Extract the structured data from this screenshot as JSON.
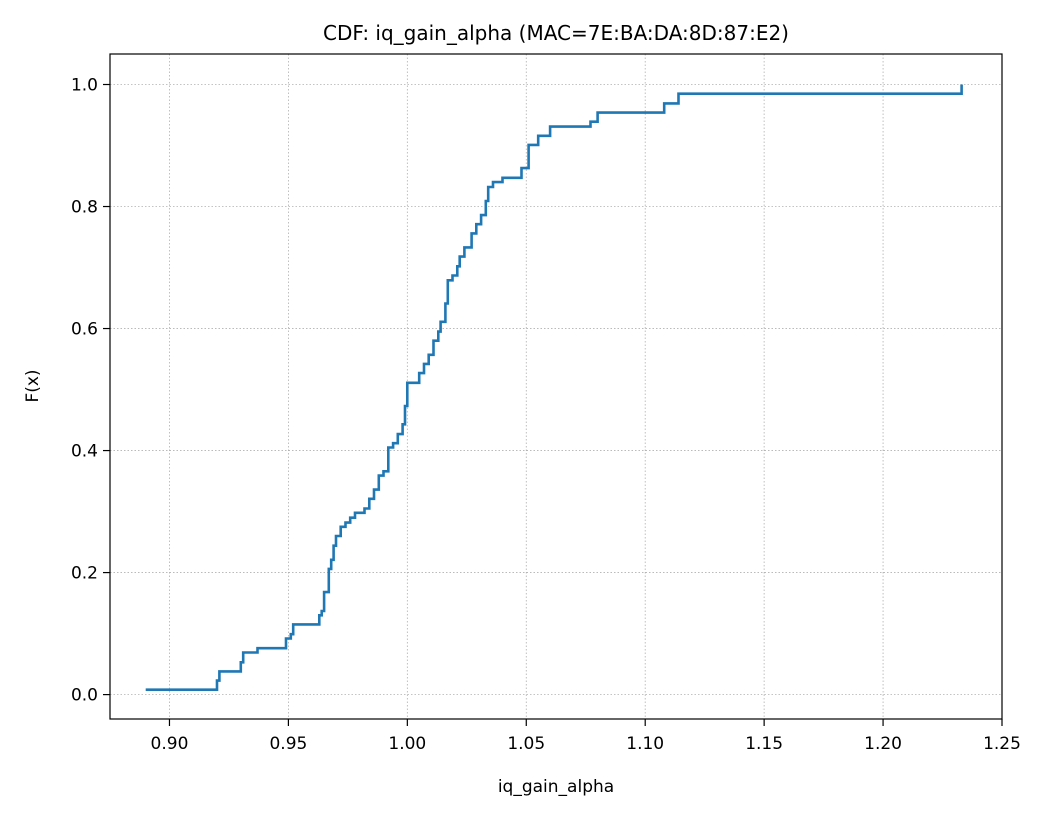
{
  "chart_data": {
    "type": "line",
    "step": true,
    "title": "CDF: iq_gain_alpha (MAC=7E:BA:DA:8D:87:E2)",
    "xlabel": "iq_gain_alpha",
    "ylabel": "F(x)",
    "xlim": [
      0.875,
      1.25
    ],
    "ylim": [
      -0.04,
      1.05
    ],
    "xticks": [
      0.9,
      0.95,
      1.0,
      1.05,
      1.1,
      1.15,
      1.2,
      1.25
    ],
    "xtick_labels": [
      "0.90",
      "0.95",
      "1.00",
      "1.05",
      "1.10",
      "1.15",
      "1.20",
      "1.25"
    ],
    "yticks": [
      0.0,
      0.2,
      0.4,
      0.6,
      0.8,
      1.0
    ],
    "ytick_labels": [
      "0.0",
      "0.2",
      "0.4",
      "0.6",
      "0.8",
      "1.0"
    ],
    "grid": true,
    "line_color": "#1f77b4",
    "series": [
      {
        "x": [
          0.89,
          0.919,
          0.92,
          0.921,
          0.93,
          0.931,
          0.937,
          0.949,
          0.951,
          0.952,
          0.963,
          0.964,
          0.965,
          0.967,
          0.968,
          0.969,
          0.97,
          0.972,
          0.974,
          0.976,
          0.978,
          0.982,
          0.984,
          0.986,
          0.988,
          0.99,
          0.992,
          0.994,
          0.996,
          0.998,
          0.999,
          1.0,
          1.005,
          1.007,
          1.009,
          1.011,
          1.013,
          1.014,
          1.016,
          1.017,
          1.019,
          1.021,
          1.022,
          1.024,
          1.027,
          1.029,
          1.031,
          1.033,
          1.034,
          1.036,
          1.039,
          1.04,
          1.048,
          1.051,
          1.055,
          1.06,
          1.063,
          1.077,
          1.08,
          1.082,
          1.108,
          1.114,
          1.233
        ],
        "y": [
          0.008,
          0.008,
          0.023,
          0.038,
          0.053,
          0.069,
          0.076,
          0.092,
          0.099,
          0.115,
          0.13,
          0.137,
          0.168,
          0.206,
          0.221,
          0.244,
          0.26,
          0.275,
          0.282,
          0.29,
          0.298,
          0.305,
          0.321,
          0.336,
          0.359,
          0.366,
          0.405,
          0.412,
          0.427,
          0.443,
          0.473,
          0.511,
          0.527,
          0.542,
          0.557,
          0.58,
          0.595,
          0.611,
          0.641,
          0.679,
          0.687,
          0.702,
          0.718,
          0.733,
          0.756,
          0.771,
          0.786,
          0.809,
          0.832,
          0.84,
          0.84,
          0.847,
          0.863,
          0.901,
          0.916,
          0.931,
          0.931,
          0.939,
          0.954,
          0.954,
          0.969,
          0.985,
          1.0
        ]
      }
    ]
  }
}
